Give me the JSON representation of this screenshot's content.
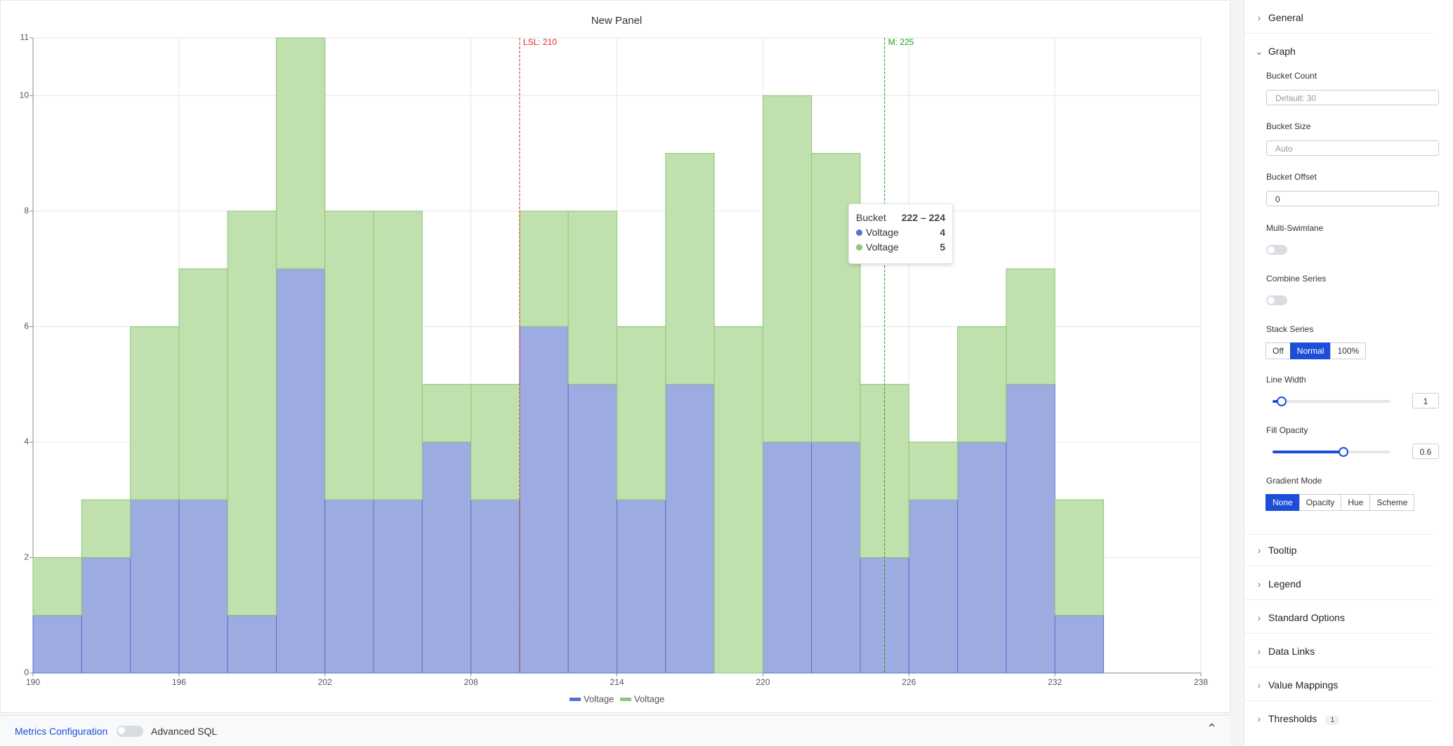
{
  "chart_data": {
    "type": "histogram",
    "title": "New Panel",
    "bins": [
      190,
      192,
      194,
      196,
      198,
      200,
      202,
      204,
      206,
      208,
      210,
      212,
      214,
      216,
      218,
      220,
      222,
      224,
      226,
      228,
      230,
      232,
      234
    ],
    "series": [
      {
        "name": "Voltage",
        "color": "#5b6fcf",
        "fill": "#9dabe0",
        "values": [
          1,
          2,
          3,
          3,
          1,
          7,
          3,
          3,
          4,
          3,
          6,
          5,
          3,
          5,
          0,
          4,
          4,
          2,
          3,
          4,
          5,
          1
        ]
      },
      {
        "name": "Voltage",
        "color": "#8cc77a",
        "fill": "#c0e0ae",
        "values": [
          1,
          1,
          3,
          4,
          7,
          4,
          5,
          5,
          1,
          2,
          2,
          3,
          3,
          4,
          6,
          6,
          5,
          3,
          1,
          2,
          2,
          2
        ]
      }
    ],
    "stacked": true,
    "xlim": [
      190,
      238
    ],
    "xticks": [
      190,
      196,
      202,
      208,
      214,
      220,
      226,
      232,
      238
    ],
    "ylim": [
      0,
      11
    ],
    "yticks": [
      0,
      2,
      4,
      6,
      8,
      10,
      11
    ],
    "grid": true,
    "annotations": [
      {
        "value": 210,
        "label": "LSL: 210",
        "color": "#e02424"
      },
      {
        "value": 225,
        "label": "M: 225",
        "color": "#16a316"
      }
    ],
    "tooltip": {
      "title": "Bucket",
      "range": "222 – 224"
    }
  },
  "bottom_bar": {
    "link": "Metrics Configuration",
    "toggle_label": "Advanced SQL"
  },
  "options": {
    "general": "General",
    "graph": {
      "title": "Graph",
      "bucket_count": {
        "label": "Bucket Count",
        "placeholder": "Default: 30"
      },
      "bucket_size": {
        "label": "Bucket Size",
        "placeholder": "Auto"
      },
      "bucket_offset": {
        "label": "Bucket Offset",
        "value": "0"
      },
      "multi_swimlane": "Multi-Swimlane",
      "combine_series": "Combine Series",
      "stack_series": {
        "label": "Stack Series",
        "options": [
          "Off",
          "Normal",
          "100%"
        ],
        "selected": "Normal"
      },
      "line_width": {
        "label": "Line Width",
        "value": 1
      },
      "fill_opacity": {
        "label": "Fill Opacity",
        "value": 0.6
      },
      "gradient_mode": {
        "label": "Gradient Mode",
        "options": [
          "None",
          "Opacity",
          "Hue",
          "Scheme"
        ],
        "selected": "None"
      }
    },
    "sections": [
      "Tooltip",
      "Legend",
      "Standard Options",
      "Data Links",
      "Value Mappings"
    ],
    "thresholds": {
      "label": "Thresholds",
      "count": 1
    }
  }
}
